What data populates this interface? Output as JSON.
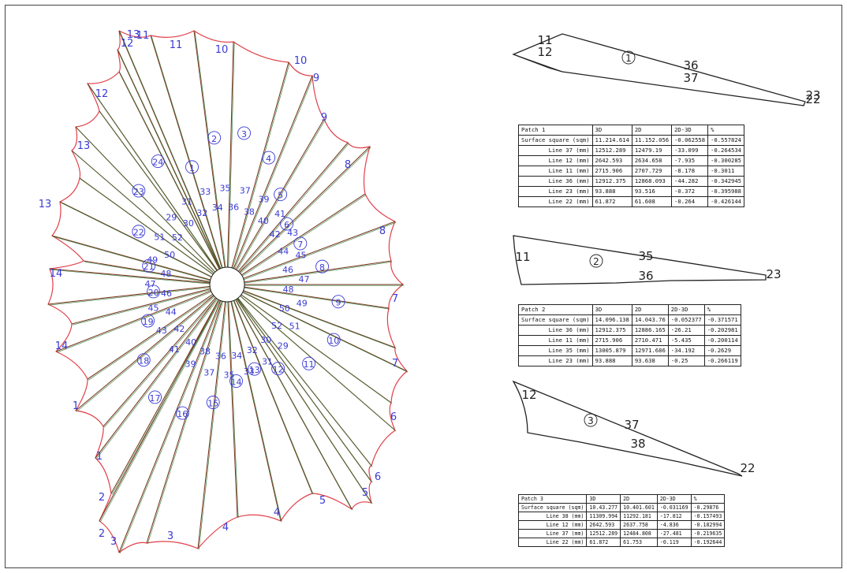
{
  "patches": [
    {
      "title": "Patch 1",
      "header": [
        "Patch 1",
        "3D",
        "2D",
        "2D-3D",
        "%"
      ],
      "rows": [
        [
          "Surface square (sqm)",
          "11.214.614",
          "11.152.056",
          "-0.062558",
          "-0.557824"
        ],
        [
          "Line 37 (mm)",
          "12512.289",
          "12479.19",
          "-33.099",
          "-0.264534"
        ],
        [
          "Line 12 (mm)",
          "2642.593",
          "2634.658",
          "-7.935",
          "-0.300285"
        ],
        [
          "Line 11 (mm)",
          "2715.906",
          "2707.729",
          "-8.178",
          "-0.3011"
        ],
        [
          "Line 36 (mm)",
          "12912.375",
          "12868.093",
          "-44.282",
          "-0.342945"
        ],
        [
          "Line 23 (mm)",
          "93.888",
          "93.516",
          "-0.372",
          "-0.395988"
        ],
        [
          "Line 22 (mm)",
          "61.872",
          "61.608",
          "-0.264",
          "-0.426144"
        ]
      ],
      "sketch_labels": {
        "circle": "1",
        "a": "11",
        "b": "12",
        "c": "36",
        "d": "37",
        "e": "23",
        "f": "22"
      }
    },
    {
      "title": "Patch 2",
      "header": [
        "Patch 2",
        "3D",
        "2D",
        "2D-3D",
        "%"
      ],
      "rows": [
        [
          "Surface square (sqm)",
          "14.096.138",
          "14.043.76",
          "-0.052377",
          "-0.371571"
        ],
        [
          "Line 36 (mm)",
          "12912.375",
          "12886.165",
          "-26.21",
          "-0.202981"
        ],
        [
          "Line 11 (mm)",
          "2715.906",
          "2710.471",
          "-5.435",
          "-0.200114"
        ],
        [
          "Line 35 (mm)",
          "13005.879",
          "12971.686",
          "-34.192",
          "-0.2629"
        ],
        [
          "Line 23 (mm)",
          "93.888",
          "93.638",
          "-0.25",
          "-0.266119"
        ]
      ],
      "sketch_labels": {
        "circle": "2",
        "a": "11",
        "b": "35",
        "c": "36",
        "d": "23"
      }
    },
    {
      "title": "Patch 3",
      "header": [
        "Patch 3",
        "3D",
        "2D",
        "2D-3D",
        "%"
      ],
      "rows": [
        [
          "Surface square (sqm)",
          "10.43.277",
          "10.401.601",
          "-0.031169",
          "-0.29876"
        ],
        [
          "Line 38 (mm)",
          "11309.994",
          "11292.181",
          "-17.812",
          "-0.157493"
        ],
        [
          "Line 12 (mm)",
          "2642.593",
          "2637.758",
          "-4.836",
          "-0.182994"
        ],
        [
          "Line 37 (mm)",
          "12512.289",
          "12484.808",
          "-27.481",
          "-0.219635"
        ],
        [
          "Line 22 (mm)",
          "61.872",
          "61.753",
          "-0.119",
          "-0.192644"
        ]
      ],
      "sketch_labels": {
        "circle": "3",
        "a": "12",
        "b": "37",
        "c": "38",
        "d": "22"
      }
    }
  ],
  "flower": {
    "labels": [
      "12",
      "11",
      "11",
      "10",
      "10",
      "9",
      "9",
      "8",
      "8",
      "7",
      "7",
      "6",
      "6",
      "5",
      "5",
      "4",
      "4",
      "3",
      "3",
      "2",
      "2",
      "1",
      "1",
      "14",
      "14",
      "13",
      "13",
      "12",
      "13"
    ],
    "panel_numbers": [
      "1",
      "2",
      "3",
      "4",
      "5",
      "6",
      "7",
      "8",
      "9",
      "10",
      "11",
      "12",
      "13",
      "14",
      "15",
      "16",
      "17",
      "18",
      "19",
      "20",
      "21",
      "22",
      "23",
      "24"
    ],
    "seam_numbers": [
      "34",
      "35",
      "36",
      "37",
      "38",
      "39",
      "40",
      "41",
      "42",
      "43",
      "44",
      "45",
      "46",
      "47",
      "48",
      "49",
      "50",
      "51",
      "52",
      "29",
      "30",
      "31",
      "32",
      "33",
      "34",
      "35",
      "36",
      "37",
      "38",
      "39",
      "40",
      "41",
      "42",
      "43",
      "44",
      "45",
      "46",
      "47",
      "48",
      "49",
      "50",
      "51",
      "52",
      "29",
      "30",
      "31",
      "32",
      "33"
    ],
    "colors": {
      "outline": "#e0404a",
      "seam_a": "#7a3a20",
      "seam_b": "#2f7a3a",
      "label": "#3a3ad6",
      "ink": "#222222"
    }
  }
}
